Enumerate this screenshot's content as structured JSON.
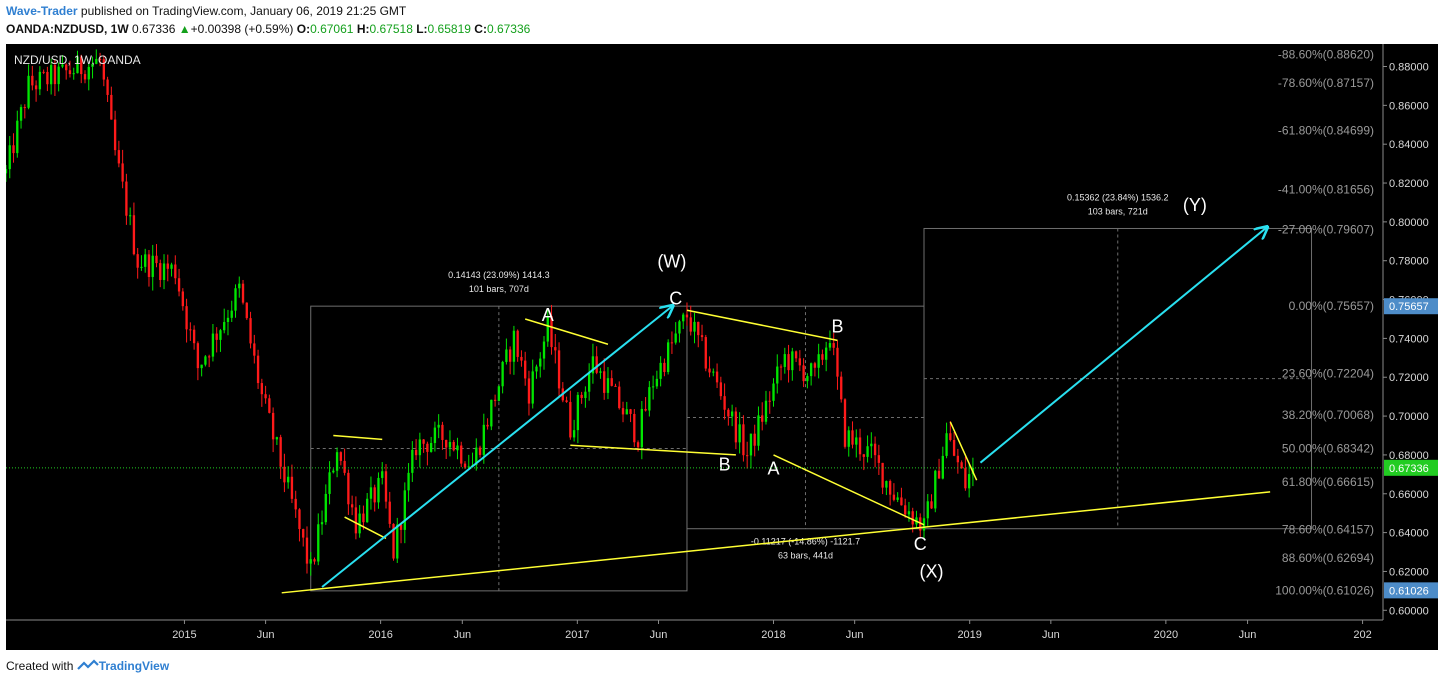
{
  "header": {
    "author": "Wave-Trader",
    "published": " published on TradingView.com, January 06, 2019 21:25 GMT",
    "symbol": "OANDA:NZDUSD, 1W",
    "last": "0.67336",
    "change_arrow": "▲",
    "change": "+0.00398 (+0.59%)",
    "o_label": "O:",
    "o": "0.67061",
    "h_label": "H:",
    "h": "0.67518",
    "l_label": "L:",
    "l": "0.65819",
    "c_label": "C:",
    "c": "0.67336"
  },
  "footer": {
    "created": "Created with",
    "logo": "TradingView"
  },
  "colors": {
    "up": "#00e600",
    "down": "#ff1a1a",
    "fib": "#9a9a9a",
    "trend": "#ffff33",
    "impulse": "#29e0f0",
    "price_tag": "#4d8cc8",
    "current_tag": "#22cc22",
    "background": "#000000"
  },
  "chart_data": {
    "type": "candlestick",
    "title": "NZD/USD, 1W, OANDA",
    "ylim": [
      0.595,
      0.8885
    ],
    "x_range": [
      "2014-02-03",
      "2021-02-08"
    ],
    "y_ticks": [
      0.6,
      0.62,
      0.64,
      0.66,
      0.68,
      0.7,
      0.72,
      0.74,
      0.76,
      0.78,
      0.8,
      0.82,
      0.84,
      0.86,
      0.88
    ],
    "x_ticks": [
      {
        "date": "2015-01-01",
        "label": "2015"
      },
      {
        "date": "2015-06-01",
        "label": "Jun"
      },
      {
        "date": "2016-01-01",
        "label": "2016"
      },
      {
        "date": "2016-06-01",
        "label": "Jun"
      },
      {
        "date": "2017-01-01",
        "label": "2017"
      },
      {
        "date": "2017-06-01",
        "label": "Jun"
      },
      {
        "date": "2018-01-01",
        "label": "2018"
      },
      {
        "date": "2018-06-01",
        "label": "Jun"
      },
      {
        "date": "2019-01-01",
        "label": "2019"
      },
      {
        "date": "2019-06-01",
        "label": "Jun"
      },
      {
        "date": "2020-01-01",
        "label": "2020"
      },
      {
        "date": "2020-06-01",
        "label": "Jun"
      },
      {
        "date": "2021-01-01",
        "label": "202"
      }
    ],
    "price_path": [
      [
        "2014-02-03",
        0.825
      ],
      [
        "2014-03-17",
        0.87
      ],
      [
        "2014-07-28",
        0.883
      ],
      [
        "2014-08-25",
        0.835
      ],
      [
        "2014-10-06",
        0.78
      ],
      [
        "2014-12-15",
        0.775
      ],
      [
        "2015-01-26",
        0.725
      ],
      [
        "2015-04-13",
        0.765
      ],
      [
        "2015-05-25",
        0.71
      ],
      [
        "2015-07-20",
        0.655
      ],
      [
        "2015-08-24",
        0.62
      ],
      [
        "2015-10-12",
        0.685
      ],
      [
        "2015-11-16",
        0.645
      ],
      [
        "2016-01-04",
        0.665
      ],
      [
        "2016-01-25",
        0.63
      ],
      [
        "2016-03-07",
        0.685
      ],
      [
        "2016-05-02",
        0.69
      ],
      [
        "2016-06-20",
        0.675
      ],
      [
        "2016-09-05",
        0.74
      ],
      [
        "2016-10-03",
        0.713
      ],
      [
        "2016-11-07",
        0.745
      ],
      [
        "2016-12-19",
        0.694
      ],
      [
        "2017-01-30",
        0.728
      ],
      [
        "2017-04-24",
        0.69
      ],
      [
        "2017-05-22",
        0.718
      ],
      [
        "2017-07-24",
        0.752
      ],
      [
        "2017-09-11",
        0.72
      ],
      [
        "2017-11-13",
        0.68
      ],
      [
        "2018-01-22",
        0.73
      ],
      [
        "2018-03-19",
        0.72
      ],
      [
        "2018-04-16",
        0.743
      ],
      [
        "2018-05-14",
        0.69
      ],
      [
        "2018-07-02",
        0.68
      ],
      [
        "2018-08-13",
        0.66
      ],
      [
        "2018-10-08",
        0.642
      ],
      [
        "2018-11-19",
        0.69
      ],
      [
        "2018-12-24",
        0.665
      ],
      [
        "2019-01-07",
        0.6734
      ]
    ],
    "fib_levels": [
      {
        "label": "-88.60%(0.88620)",
        "value": 0.8862
      },
      {
        "label": "-78.60%(0.87157)",
        "value": 0.87157
      },
      {
        "label": "-61.80%(0.84699)",
        "value": 0.84699
      },
      {
        "label": "-41.00%(0.81656)",
        "value": 0.81656
      },
      {
        "label": "-27.00%(0.79607)",
        "value": 0.79607
      },
      {
        "label": "0.00%(0.75657)",
        "value": 0.75657
      },
      {
        "label": "23.60%(0.72204)",
        "value": 0.72204
      },
      {
        "label": "38.20%(0.70068)",
        "value": 0.70068
      },
      {
        "label": "50.00%(0.68342)",
        "value": 0.68342
      },
      {
        "label": "61.80%(0.66615)",
        "value": 0.66615
      },
      {
        "label": "78.60%(0.64157)",
        "value": 0.64157
      },
      {
        "label": "88.60%(0.62694)",
        "value": 0.62694
      },
      {
        "label": "100.00%(0.61026)",
        "value": 0.61026
      }
    ],
    "price_tags": [
      {
        "label": "0.75657",
        "value": 0.75657,
        "kind": "blue"
      },
      {
        "label": "0.67336",
        "value": 0.67336,
        "kind": "current"
      },
      {
        "label": "0.61026",
        "value": 0.61026,
        "kind": "blue"
      }
    ],
    "current_price": 0.67336,
    "measures": [
      {
        "from": [
          "2015-08-24",
          0.61
        ],
        "to": [
          "2017-07-24",
          0.7566
        ],
        "label": "0.14143 (23.09%) 1414.3",
        "sub": "101 bars, 707d"
      },
      {
        "from": [
          "2017-07-24",
          0.7566
        ],
        "to": [
          "2018-10-08",
          0.642
        ],
        "label": "-0.11217 (-14.86%) -1121.7",
        "sub": "63 bars, 441d"
      },
      {
        "from": [
          "2018-10-08",
          0.642
        ],
        "to": [
          "2020-09-28",
          0.7966
        ],
        "label": "0.15362 (23.84%) 1536.2",
        "sub": "103 bars, 721d"
      }
    ],
    "trendlines": [
      {
        "from": [
          "2015-07-01",
          0.609
        ],
        "to": [
          "2020-07-13",
          0.661
        ],
        "color": "trend"
      },
      {
        "from": [
          "2016-12-19",
          0.685
        ],
        "to": [
          "2017-10-23",
          0.68
        ],
        "color": "trend"
      },
      {
        "from": [
          "2016-09-26",
          0.75
        ],
        "to": [
          "2017-02-27",
          0.737
        ],
        "color": "trend"
      },
      {
        "from": [
          "2017-07-24",
          0.7545
        ],
        "to": [
          "2018-04-30",
          0.739
        ],
        "color": "trend"
      },
      {
        "from": [
          "2018-01-01",
          0.68
        ],
        "to": [
          "2018-10-08",
          0.644
        ],
        "color": "trend"
      },
      {
        "from": [
          "2015-10-05",
          0.69
        ],
        "to": [
          "2016-01-04",
          0.688
        ],
        "color": "trend"
      },
      {
        "from": [
          "2015-10-26",
          0.648
        ],
        "to": [
          "2016-01-11",
          0.637
        ],
        "color": "trend"
      },
      {
        "from": [
          "2018-11-26",
          0.697
        ],
        "to": [
          "2019-01-14",
          0.667
        ],
        "color": "trend"
      },
      {
        "from": [
          "2015-09-14",
          0.612
        ],
        "to": [
          "2017-06-26",
          0.7565
        ],
        "color": "impulse",
        "arrow": true
      },
      {
        "from": [
          "2019-01-21",
          0.676
        ],
        "to": [
          "2020-07-06",
          0.797
        ],
        "color": "impulse",
        "arrow": true
      }
    ],
    "wave_labels": [
      {
        "text": "(W)",
        "at": [
          "2017-06-26",
          0.7765
        ]
      },
      {
        "text": "C",
        "at": [
          "2017-07-03",
          0.7575
        ]
      },
      {
        "text": "A",
        "at": [
          "2016-11-07",
          0.749
        ]
      },
      {
        "text": "B",
        "at": [
          "2017-10-02",
          0.672
        ]
      },
      {
        "text": "B",
        "at": [
          "2018-04-30",
          0.743
        ]
      },
      {
        "text": "A",
        "at": [
          "2018-01-01",
          0.67
        ]
      },
      {
        "text": "C",
        "at": [
          "2018-10-01",
          0.631
        ]
      },
      {
        "text": "(X)",
        "at": [
          "2018-10-22",
          0.617
        ]
      },
      {
        "text": "(Y)",
        "at": [
          "2020-02-24",
          0.8055
        ]
      }
    ]
  }
}
